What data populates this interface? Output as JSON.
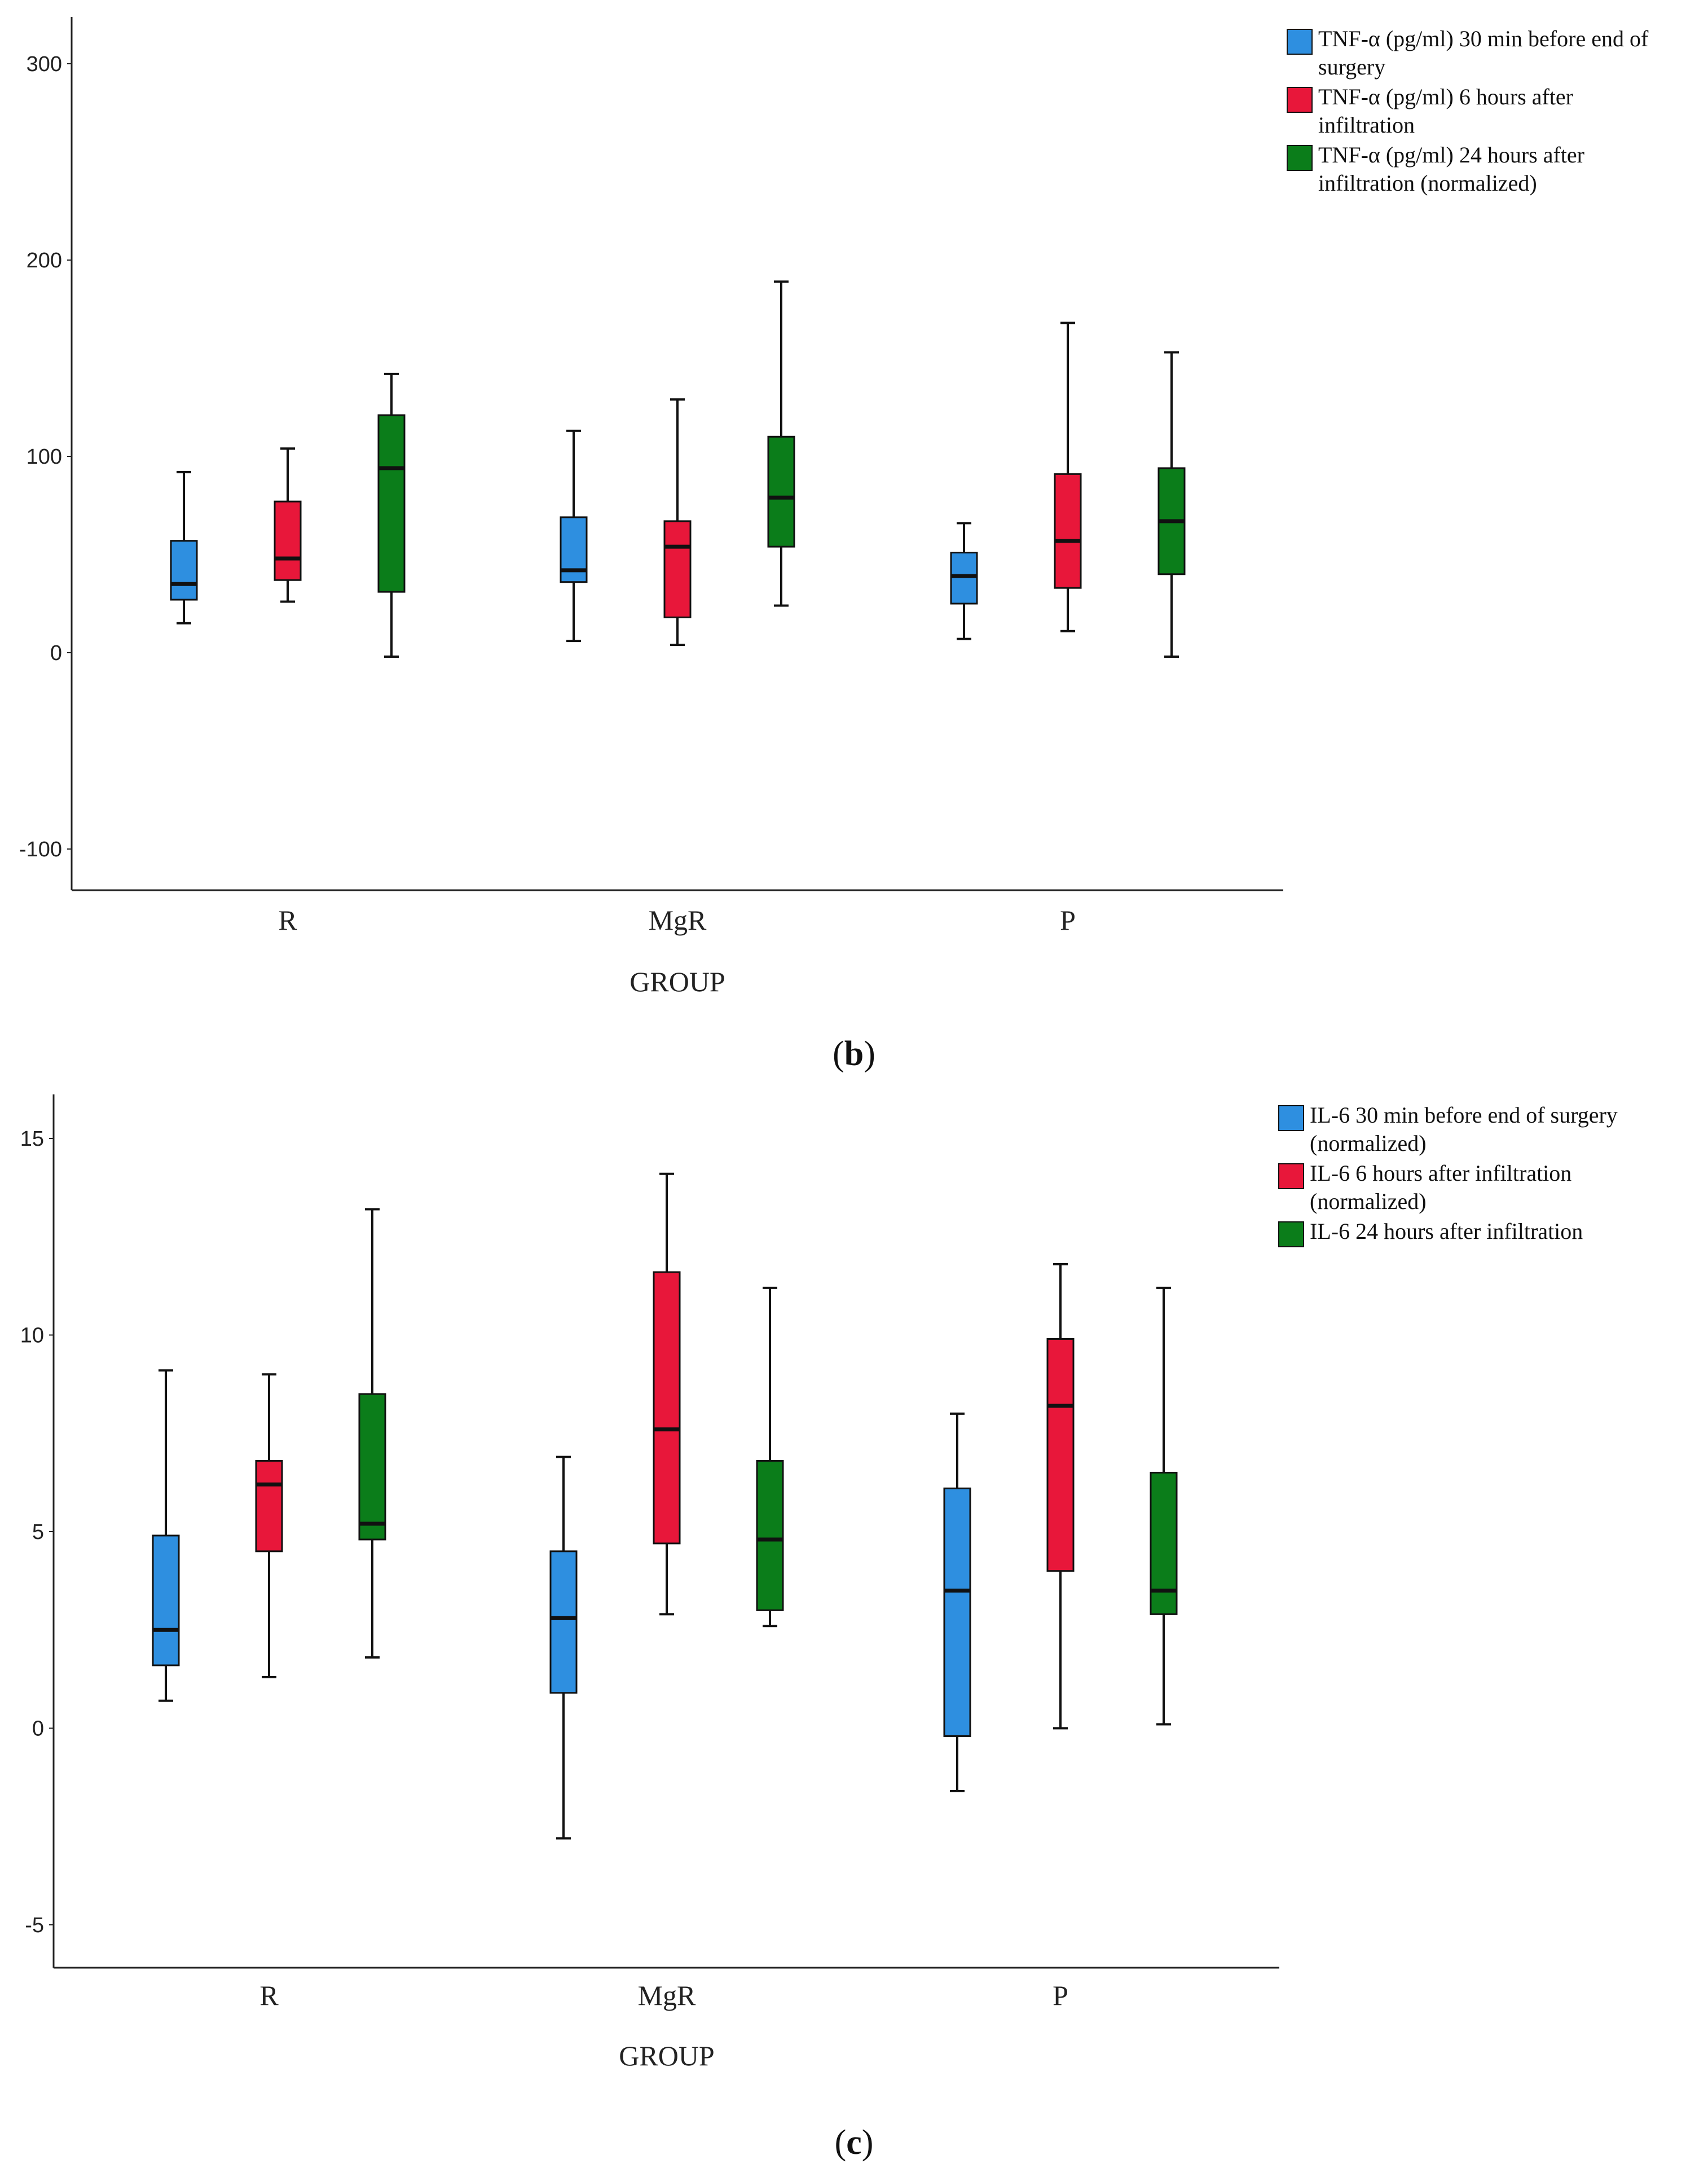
{
  "chart_data": [
    {
      "type": "boxplot",
      "panel_label": "b",
      "xlabel": "GROUP",
      "ylabel": "",
      "categories": [
        "R",
        "MgR",
        "P"
      ],
      "ylim": [
        -120,
        320
      ],
      "yticks": [
        -100,
        0,
        100,
        200,
        300
      ],
      "legend_position": "top-right",
      "series": [
        {
          "name": "TNF-α (pg/ml) 30 min before end of surgery",
          "legend_lines": [
            "TNF-α (pg/ml) 30 min before end of",
            "surgery"
          ],
          "color": "#2e8fe0",
          "boxes": [
            {
              "min": 15,
              "q1": 27,
              "median": 35,
              "q3": 57,
              "max": 92
            },
            {
              "min": 6,
              "q1": 36,
              "median": 42,
              "q3": 69,
              "max": 113
            },
            {
              "min": 7,
              "q1": 25,
              "median": 39,
              "q3": 51,
              "max": 66
            }
          ]
        },
        {
          "name": "TNF-α (pg/ml) 6 hours after infiltration",
          "legend_lines": [
            "TNF-α (pg/ml) 6 hours after",
            "infiltration"
          ],
          "color": "#e8173a",
          "boxes": [
            {
              "min": 26,
              "q1": 37,
              "median": 48,
              "q3": 77,
              "max": 104
            },
            {
              "min": 4,
              "q1": 18,
              "median": 54,
              "q3": 67,
              "max": 129
            },
            {
              "min": 11,
              "q1": 33,
              "median": 57,
              "q3": 91,
              "max": 168
            }
          ]
        },
        {
          "name": "TNF-α (pg/ml) 24 hours after infiltration (normalized)",
          "legend_lines": [
            "TNF-α (pg/ml) 24 hours after",
            "infiltration (normalized)"
          ],
          "color": "#0b7d1a",
          "boxes": [
            {
              "min": -2,
              "q1": 31,
              "median": 94,
              "q3": 121,
              "max": 142
            },
            {
              "min": 24,
              "q1": 54,
              "median": 79,
              "q3": 110,
              "max": 189
            },
            {
              "min": -2,
              "q1": 40,
              "median": 67,
              "q3": 94,
              "max": 153
            }
          ]
        }
      ]
    },
    {
      "type": "boxplot",
      "panel_label": "c",
      "xlabel": "GROUP",
      "ylabel": "",
      "categories": [
        "R",
        "MgR",
        "P"
      ],
      "ylim": [
        -6.2,
        16
      ],
      "yticks": [
        -5,
        0,
        5,
        10,
        15
      ],
      "legend_position": "top-right",
      "series": [
        {
          "name": "IL-6 30 min before end of surgery (normalized)",
          "legend_lines": [
            "IL-6 30 min before end of surgery",
            "(normalized)"
          ],
          "color": "#2e8fe0",
          "boxes": [
            {
              "min": 0.7,
              "q1": 1.6,
              "median": 2.5,
              "q3": 4.9,
              "max": 9.1
            },
            {
              "min": -2.8,
              "q1": 0.9,
              "median": 2.8,
              "q3": 4.5,
              "max": 6.9
            },
            {
              "min": -1.6,
              "q1": -0.2,
              "median": 3.5,
              "q3": 6.1,
              "max": 8.0
            }
          ]
        },
        {
          "name": "IL-6 6 hours after infiltration (normalized)",
          "legend_lines": [
            "IL-6 6 hours after infiltration",
            "(normalized)"
          ],
          "color": "#e8173a",
          "boxes": [
            {
              "min": 1.3,
              "q1": 4.5,
              "median": 6.2,
              "q3": 6.8,
              "max": 9.0
            },
            {
              "min": 2.9,
              "q1": 4.7,
              "median": 7.6,
              "q3": 11.6,
              "max": 14.1
            },
            {
              "min": 0.0,
              "q1": 4.0,
              "median": 8.2,
              "q3": 9.9,
              "max": 11.8
            }
          ]
        },
        {
          "name": "IL-6 24 hours after infiltration",
          "legend_lines": [
            "IL-6 24 hours after infiltration"
          ],
          "color": "#0b7d1a",
          "boxes": [
            {
              "min": 1.8,
              "q1": 4.8,
              "median": 5.2,
              "q3": 8.5,
              "max": 13.2
            },
            {
              "min": 2.6,
              "q1": 3.0,
              "median": 4.8,
              "q3": 6.8,
              "max": 11.2
            },
            {
              "min": 0.1,
              "q1": 2.9,
              "median": 3.5,
              "q3": 6.5,
              "max": 11.2
            }
          ]
        }
      ]
    }
  ]
}
